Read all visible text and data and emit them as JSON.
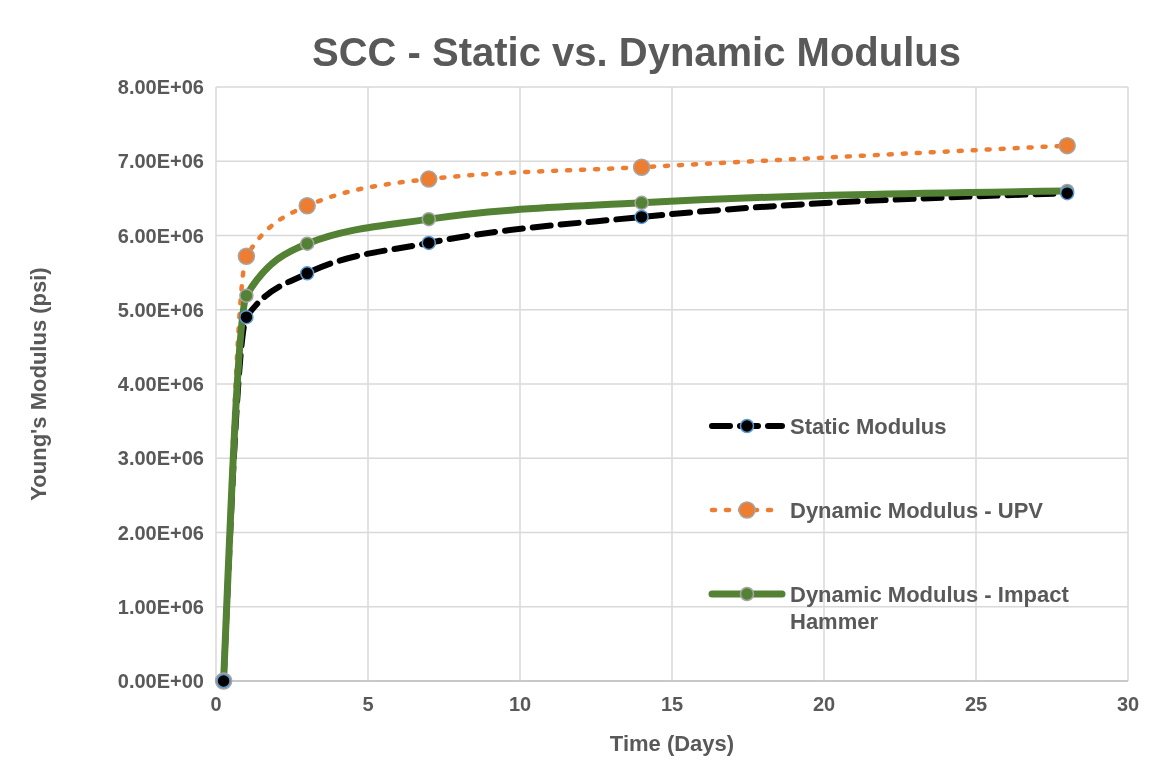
{
  "chart_data": {
    "type": "line",
    "title": "SCC - Static vs. Dynamic Modulus",
    "xlabel": "Time (Days)",
    "ylabel": "Young's Modulus (psi)",
    "x": [
      0.25,
      1,
      3,
      7,
      14,
      28
    ],
    "series": [
      {
        "name": "Static Modulus",
        "color": "#000000",
        "line_style": "dashed",
        "marker": "circle",
        "values": [
          0,
          4900000,
          5490000,
          5900000,
          6250000,
          6570000
        ]
      },
      {
        "name": "Dynamic Modulus - UPV",
        "color": "#ed7d31",
        "line_style": "dotted",
        "marker": "circle",
        "values": [
          0,
          5720000,
          6400000,
          6760000,
          6920000,
          7210000
        ]
      },
      {
        "name": "Dynamic Modulus - Impact Hammer",
        "color": "#548235",
        "line_style": "solid",
        "marker": "circle",
        "values": [
          0,
          5190000,
          5890000,
          6220000,
          6440000,
          6600000
        ]
      }
    ],
    "xlim": [
      0,
      30
    ],
    "xticks": [
      0,
      5,
      10,
      15,
      20,
      25,
      30
    ],
    "ylim": [
      0,
      8000000
    ],
    "yticks": [
      {
        "value": 0,
        "label": "0.00E+00"
      },
      {
        "value": 1000000,
        "label": "1.00E+06"
      },
      {
        "value": 2000000,
        "label": "2.00E+06"
      },
      {
        "value": 3000000,
        "label": "3.00E+06"
      },
      {
        "value": 4000000,
        "label": "4.00E+06"
      },
      {
        "value": 5000000,
        "label": "5.00E+06"
      },
      {
        "value": 6000000,
        "label": "6.00E+06"
      },
      {
        "value": 7000000,
        "label": "7.00E+06"
      },
      {
        "value": 8000000,
        "label": "8.00E+06"
      }
    ],
    "grid": true,
    "legend": "right"
  }
}
